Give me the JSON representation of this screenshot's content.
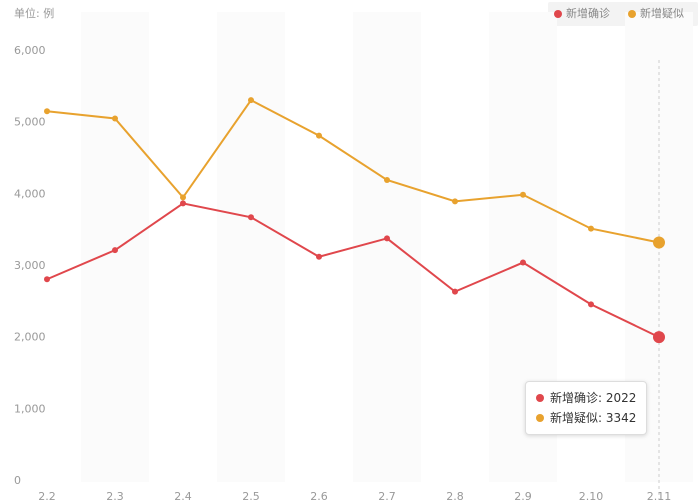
{
  "chart_data": {
    "type": "line",
    "y_axis_label": "单位: 例",
    "categories": [
      "2.2",
      "2.3",
      "2.4",
      "2.5",
      "2.6",
      "2.7",
      "2.8",
      "2.9",
      "2.10",
      "2.11"
    ],
    "series": [
      {
        "name": "新增确诊",
        "color": "#e0474c",
        "values": [
          2829,
          3235,
          3887,
          3694,
          3143,
          3399,
          2656,
          3062,
          2478,
          2022
        ]
      },
      {
        "name": "新增疑似",
        "color": "#e8a22e",
        "values": [
          5173,
          5072,
          3971,
          5328,
          4833,
          4214,
          3916,
          4008,
          3536,
          3342
        ]
      }
    ],
    "ylim": [
      0,
      6000
    ],
    "yticks": [
      0,
      {
        "value": 1000,
        "label": "1,000"
      },
      {
        "value": 2000,
        "label": "2,000"
      },
      {
        "value": 3000,
        "label": "3,000"
      },
      {
        "value": 4000,
        "label": "4,000"
      },
      {
        "value": 5000,
        "label": "5,000"
      },
      {
        "value": 6000,
        "label": "6,000"
      }
    ],
    "legend": "top-right"
  }
}
